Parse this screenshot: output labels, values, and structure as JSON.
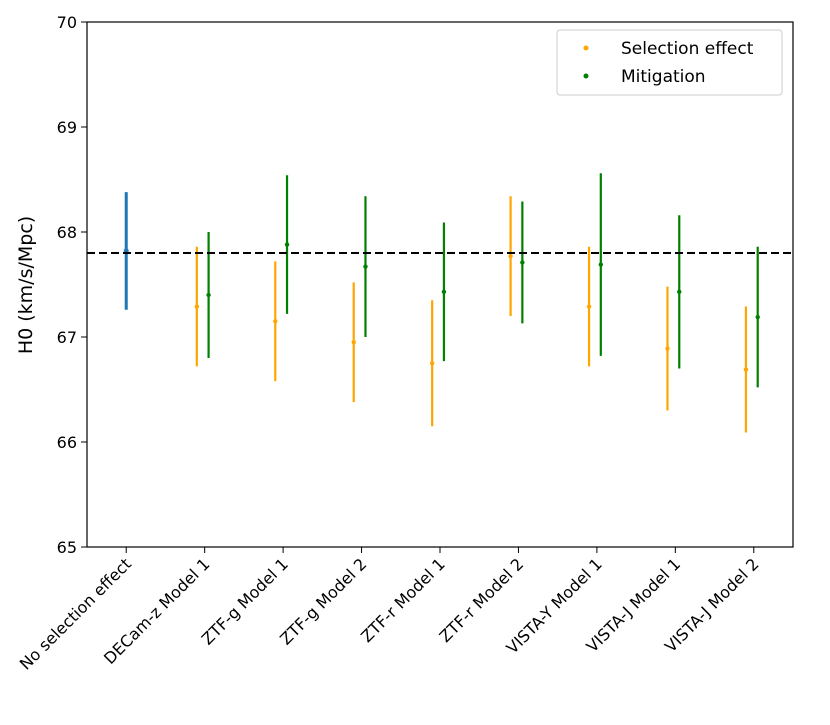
{
  "chart_data": {
    "type": "errorbar",
    "ylabel": "H0 (km/s/Mpc)",
    "categories": [
      "No selection effect",
      "DECam-z Model 1",
      "ZTF-g Model 1",
      "ZTF-g Model 2",
      "ZTF-r Model 1",
      "ZTF-r Model 2",
      "VISTA-Y Model 1",
      "VISTA-J Model 1",
      "VISTA-J Model 2"
    ],
    "reference_point": {
      "color": "#1f77b4",
      "value": 67.82,
      "error": 0.56
    },
    "series": [
      {
        "name": "Selection effect",
        "color": "#ffa500",
        "values": [
          null,
          67.29,
          67.15,
          66.95,
          66.75,
          67.77,
          67.29,
          66.89,
          66.69
        ],
        "errors": [
          null,
          0.57,
          0.57,
          0.57,
          0.6,
          0.57,
          0.57,
          0.59,
          0.6
        ]
      },
      {
        "name": "Mitigation",
        "color": "#008000",
        "values": [
          null,
          67.4,
          67.88,
          67.67,
          67.43,
          67.71,
          67.69,
          67.43,
          67.19
        ],
        "errors": [
          null,
          0.6,
          0.66,
          0.67,
          0.66,
          0.58,
          0.87,
          0.73,
          0.67
        ]
      }
    ],
    "hline": 67.8,
    "ylim": [
      65,
      70
    ],
    "yticks": [
      65,
      66,
      67,
      68,
      69,
      70
    ],
    "legend": "upper right"
  }
}
